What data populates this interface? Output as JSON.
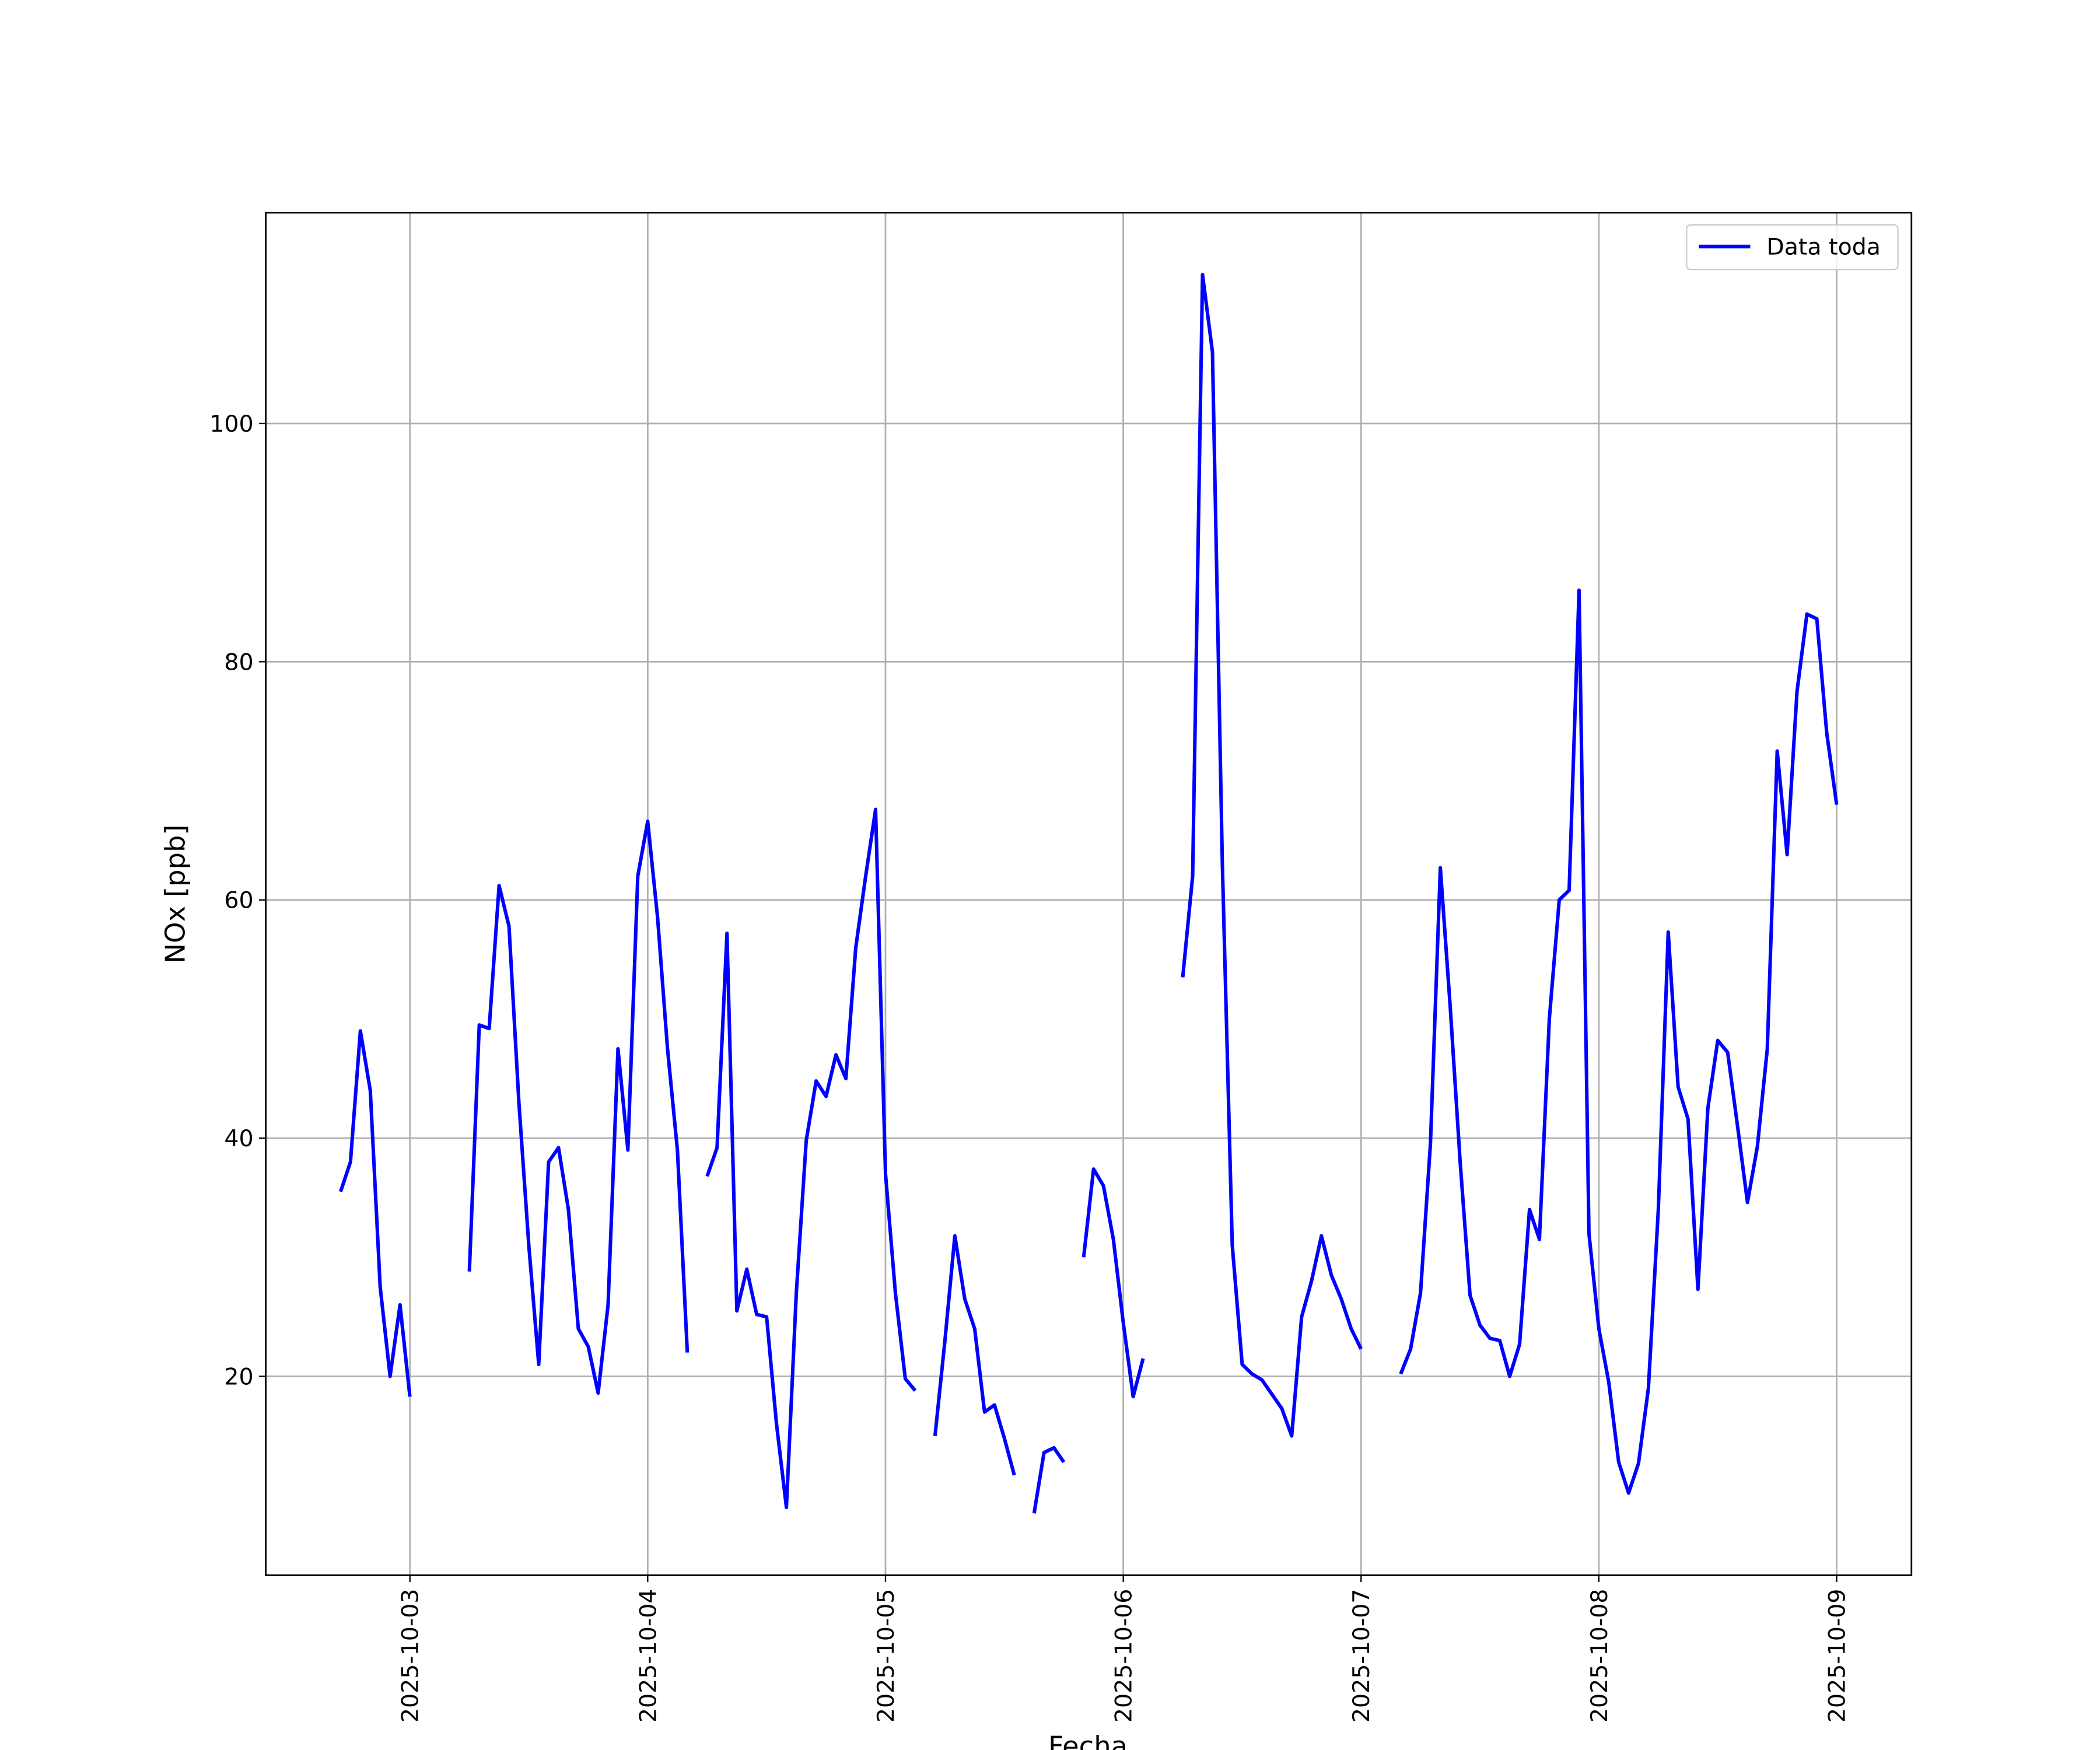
{
  "chart_data": {
    "type": "line",
    "xlabel": "Fecha",
    "ylabel": "NOx [ppb]",
    "x": [
      "2025-10-02 17:00",
      "2025-10-02 18:00",
      "2025-10-02 19:00",
      "2025-10-02 20:00",
      "2025-10-02 21:00",
      "2025-10-02 22:00",
      "2025-10-02 23:00",
      "2025-10-03 00:00",
      "2025-10-03 01:00",
      "2025-10-03 02:00",
      "2025-10-03 03:00",
      "2025-10-03 04:00",
      "2025-10-03 05:00",
      "2025-10-03 06:00",
      "2025-10-03 07:00",
      "2025-10-03 08:00",
      "2025-10-03 09:00",
      "2025-10-03 10:00",
      "2025-10-03 11:00",
      "2025-10-03 12:00",
      "2025-10-03 13:00",
      "2025-10-03 14:00",
      "2025-10-03 15:00",
      "2025-10-03 16:00",
      "2025-10-03 17:00",
      "2025-10-03 18:00",
      "2025-10-03 19:00",
      "2025-10-03 20:00",
      "2025-10-03 21:00",
      "2025-10-03 22:00",
      "2025-10-03 23:00",
      "2025-10-04 00:00",
      "2025-10-04 01:00",
      "2025-10-04 02:00",
      "2025-10-04 03:00",
      "2025-10-04 04:00",
      "2025-10-04 05:00",
      "2025-10-04 06:00",
      "2025-10-04 07:00",
      "2025-10-04 08:00",
      "2025-10-04 09:00",
      "2025-10-04 10:00",
      "2025-10-04 11:00",
      "2025-10-04 12:00",
      "2025-10-04 13:00",
      "2025-10-04 14:00",
      "2025-10-04 15:00",
      "2025-10-04 16:00",
      "2025-10-04 17:00",
      "2025-10-04 18:00",
      "2025-10-04 19:00",
      "2025-10-04 20:00",
      "2025-10-04 21:00",
      "2025-10-04 22:00",
      "2025-10-04 23:00",
      "2025-10-05 00:00",
      "2025-10-05 01:00",
      "2025-10-05 02:00",
      "2025-10-05 03:00",
      "2025-10-05 04:00",
      "2025-10-05 05:00",
      "2025-10-05 06:00",
      "2025-10-05 07:00",
      "2025-10-05 08:00",
      "2025-10-05 09:00",
      "2025-10-05 10:00",
      "2025-10-05 11:00",
      "2025-10-05 12:00",
      "2025-10-05 13:00",
      "2025-10-05 14:00",
      "2025-10-05 15:00",
      "2025-10-05 16:00",
      "2025-10-05 17:00",
      "2025-10-05 18:00",
      "2025-10-05 19:00",
      "2025-10-05 20:00",
      "2025-10-05 21:00",
      "2025-10-05 22:00",
      "2025-10-05 23:00",
      "2025-10-06 00:00",
      "2025-10-06 01:00",
      "2025-10-06 02:00",
      "2025-10-06 03:00",
      "2025-10-06 04:00",
      "2025-10-06 05:00",
      "2025-10-06 06:00",
      "2025-10-06 07:00",
      "2025-10-06 08:00",
      "2025-10-06 09:00",
      "2025-10-06 10:00",
      "2025-10-06 11:00",
      "2025-10-06 12:00",
      "2025-10-06 13:00",
      "2025-10-06 14:00",
      "2025-10-06 15:00",
      "2025-10-06 16:00",
      "2025-10-06 17:00",
      "2025-10-06 18:00",
      "2025-10-06 19:00",
      "2025-10-06 20:00",
      "2025-10-06 21:00",
      "2025-10-06 22:00",
      "2025-10-06 23:00",
      "2025-10-07 00:00",
      "2025-10-07 01:00",
      "2025-10-07 02:00",
      "2025-10-07 03:00",
      "2025-10-07 04:00",
      "2025-10-07 05:00",
      "2025-10-07 06:00",
      "2025-10-07 07:00",
      "2025-10-07 08:00",
      "2025-10-07 09:00",
      "2025-10-07 10:00",
      "2025-10-07 11:00",
      "2025-10-07 12:00",
      "2025-10-07 13:00",
      "2025-10-07 14:00",
      "2025-10-07 15:00",
      "2025-10-07 16:00",
      "2025-10-07 17:00",
      "2025-10-07 18:00",
      "2025-10-07 19:00",
      "2025-10-07 20:00",
      "2025-10-07 21:00",
      "2025-10-07 22:00",
      "2025-10-07 23:00",
      "2025-10-08 00:00",
      "2025-10-08 01:00",
      "2025-10-08 02:00",
      "2025-10-08 03:00",
      "2025-10-08 04:00",
      "2025-10-08 05:00",
      "2025-10-08 06:00",
      "2025-10-08 07:00",
      "2025-10-08 08:00",
      "2025-10-08 09:00",
      "2025-10-08 10:00",
      "2025-10-08 11:00",
      "2025-10-08 12:00",
      "2025-10-08 13:00",
      "2025-10-08 14:00",
      "2025-10-08 15:00",
      "2025-10-08 16:00",
      "2025-10-08 17:00",
      "2025-10-08 18:00",
      "2025-10-08 19:00",
      "2025-10-08 20:00",
      "2025-10-08 21:00",
      "2025-10-08 22:00",
      "2025-10-08 23:00",
      "2025-10-09 00:00"
    ],
    "series": [
      {
        "name": "Data toda",
        "color": "#0000ff",
        "values": [
          35.5,
          38,
          49,
          44,
          27.5,
          20,
          26,
          18.3,
          null,
          null,
          null,
          null,
          null,
          28.8,
          49.5,
          49.2,
          61.2,
          57.8,
          43,
          31,
          21,
          38,
          39.2,
          34,
          24,
          22.5,
          18.6,
          26,
          47.5,
          39,
          62,
          66.6,
          58.5,
          47.5,
          39,
          22,
          null,
          36.8,
          39.2,
          57.2,
          25.5,
          29,
          25.2,
          25,
          16,
          9,
          27,
          39.8,
          44.8,
          43.5,
          47,
          45,
          56,
          62,
          67.6,
          37,
          27,
          19.8,
          18.8,
          null,
          15,
          23,
          31.8,
          26.5,
          24,
          17,
          17.6,
          14.8,
          11.7,
          null,
          8.5,
          13.6,
          14,
          12.8,
          null,
          30,
          37.4,
          36,
          31.5,
          24.5,
          18.3,
          21.5,
          null,
          null,
          null,
          53.5,
          62,
          112.5,
          106,
          63,
          31,
          21,
          20.2,
          19.7,
          18.5,
          17.3,
          15,
          25,
          28,
          31.8,
          28.5,
          26.5,
          24,
          22.3,
          null,
          null,
          null,
          20.2,
          22.3,
          27,
          39.5,
          62.7,
          51,
          38,
          26.8,
          24.3,
          23.2,
          23,
          20,
          22.7,
          34,
          31.5,
          50,
          60,
          60.8,
          86,
          32,
          24,
          19.5,
          12.8,
          10.2,
          12.7,
          19,
          34,
          57.3,
          44.3,
          41.6,
          27.3,
          42.5,
          48.2,
          47.2,
          41,
          34.6,
          39.3,
          47.5,
          72.5,
          63.8,
          77.5,
          84,
          83.6,
          74,
          68
        ]
      }
    ],
    "xlim": [
      "2025-10-02 09:27",
      "2025-10-09 07:33"
    ],
    "xticks": [
      "2025-10-03",
      "2025-10-04",
      "2025-10-05",
      "2025-10-06",
      "2025-10-07",
      "2025-10-08",
      "2025-10-09"
    ],
    "ylim": [
      3.3,
      117.7
    ],
    "yticks": [
      20,
      40,
      60,
      80,
      100
    ],
    "grid": true,
    "legend": "upper right"
  }
}
